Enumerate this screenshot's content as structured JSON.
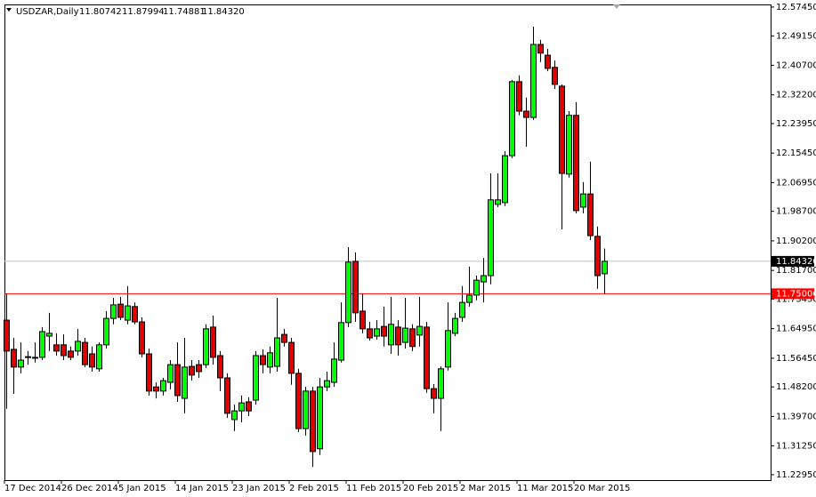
{
  "chart_data": {
    "type": "candlestick",
    "title": "USDZAR,Daily",
    "header_values": [
      "11.80742",
      "11.87994",
      "11.74881",
      "11.84320"
    ],
    "categories": [
      "17 Dec 2014",
      null,
      null,
      null,
      null,
      null,
      null,
      null,
      "26 Dec 2014",
      null,
      null,
      null,
      null,
      null,
      null,
      null,
      "5 Jan 2015",
      null,
      null,
      null,
      null,
      null,
      null,
      null,
      "14 Jan 2015",
      null,
      null,
      null,
      null,
      null,
      null,
      null,
      "23 Jan 2015",
      null,
      null,
      null,
      null,
      null,
      null,
      null,
      "2 Feb 2015",
      null,
      null,
      null,
      null,
      null,
      null,
      null,
      "11 Feb 2015",
      null,
      null,
      null,
      null,
      null,
      null,
      null,
      "20 Feb 2015",
      null,
      null,
      null,
      null,
      null,
      null,
      null,
      "2 Mar 2015",
      null,
      null,
      null,
      null,
      null,
      null,
      null,
      "11 Mar 2015",
      null,
      null,
      null,
      null,
      null,
      null,
      null,
      "20 Mar 2015",
      null,
      null,
      null,
      null
    ],
    "open": [
      11.674,
      11.59,
      11.539,
      11.567,
      11.566,
      11.567,
      11.628,
      11.603,
      11.603,
      11.585,
      11.585,
      11.61,
      11.577,
      11.534,
      11.603,
      11.679,
      11.72,
      11.674,
      11.713,
      11.669,
      11.577,
      11.482,
      11.47,
      11.495,
      11.546,
      11.449,
      11.541,
      11.546,
      11.546,
      11.654,
      11.572,
      11.508,
      11.388,
      11.413,
      11.439,
      11.444,
      11.572,
      11.539,
      11.541,
      11.633,
      11.61,
      11.521,
      11.362,
      11.47,
      11.304,
      11.482,
      11.495,
      11.559,
      11.667,
      11.843,
      11.7,
      11.649,
      11.628,
      11.656,
      11.603,
      11.654,
      11.61,
      11.649,
      11.631,
      11.654,
      11.477,
      11.449,
      11.539,
      11.636,
      11.682,
      11.725,
      11.746,
      11.784,
      11.802,
      12.007,
      12.012,
      12.147,
      12.36,
      12.275,
      12.257,
      12.467,
      12.436,
      12.401,
      12.347,
      12.094,
      12.263,
      11.999,
      12.037,
      11.915,
      11.80742
    ],
    "high": [
      11.751,
      11.623,
      11.61,
      11.585,
      11.61,
      11.654,
      11.695,
      11.636,
      11.633,
      11.598,
      11.649,
      11.623,
      11.598,
      11.61,
      11.7,
      11.738,
      11.741,
      11.772,
      11.725,
      11.682,
      11.592,
      11.495,
      11.508,
      11.559,
      11.61,
      11.623,
      11.559,
      11.559,
      11.662,
      11.687,
      11.585,
      11.521,
      11.431,
      11.457,
      11.452,
      11.585,
      11.59,
      11.598,
      11.738,
      11.649,
      11.623,
      11.534,
      11.482,
      11.482,
      11.508,
      11.526,
      11.61,
      11.725,
      11.884,
      11.869,
      11.751,
      11.669,
      11.674,
      11.713,
      11.741,
      11.674,
      11.738,
      11.662,
      11.741,
      11.669,
      11.49,
      11.541,
      11.725,
      11.695,
      11.772,
      11.828,
      11.802,
      11.853,
      12.096,
      12.096,
      12.16,
      12.365,
      12.378,
      12.314,
      12.518,
      12.48,
      12.454,
      12.421,
      12.352,
      12.275,
      12.301,
      12.071,
      12.13,
      11.943,
      11.87994
    ],
    "low": [
      11.419,
      11.462,
      11.521,
      11.546,
      11.552,
      11.559,
      11.585,
      11.572,
      11.559,
      11.559,
      11.572,
      11.539,
      11.526,
      11.526,
      11.592,
      11.662,
      11.674,
      11.662,
      11.662,
      11.567,
      11.457,
      11.449,
      11.457,
      11.475,
      11.439,
      11.406,
      11.5,
      11.508,
      11.536,
      11.546,
      11.47,
      11.393,
      11.355,
      11.38,
      11.398,
      11.431,
      11.521,
      11.521,
      11.526,
      11.598,
      11.488,
      11.352,
      11.342,
      11.252,
      11.286,
      11.47,
      11.482,
      11.552,
      11.654,
      11.669,
      11.636,
      11.615,
      11.618,
      11.598,
      11.577,
      11.572,
      11.592,
      11.585,
      11.598,
      11.465,
      11.406,
      11.355,
      11.529,
      11.628,
      11.669,
      11.713,
      11.731,
      11.725,
      11.777,
      11.999,
      12.002,
      12.14,
      12.263,
      12.173,
      12.25,
      12.416,
      12.39,
      12.339,
      11.935,
      12.084,
      11.981,
      11.981,
      11.904,
      11.764,
      11.74881
    ],
    "close": [
      11.585,
      11.539,
      11.559,
      11.569,
      11.567,
      11.641,
      11.636,
      11.585,
      11.572,
      11.567,
      11.613,
      11.546,
      11.539,
      11.603,
      11.679,
      11.718,
      11.682,
      11.715,
      11.669,
      11.577,
      11.47,
      11.47,
      11.5,
      11.546,
      11.457,
      11.539,
      11.516,
      11.526,
      11.649,
      11.567,
      11.508,
      11.406,
      11.413,
      11.436,
      11.413,
      11.572,
      11.546,
      11.58,
      11.623,
      11.61,
      11.521,
      11.362,
      11.47,
      11.296,
      11.482,
      11.5,
      11.562,
      11.667,
      11.841,
      11.695,
      11.649,
      11.623,
      11.649,
      11.628,
      11.662,
      11.603,
      11.651,
      11.598,
      11.656,
      11.477,
      11.449,
      11.534,
      11.644,
      11.679,
      11.725,
      11.746,
      11.789,
      11.802,
      12.02,
      12.02,
      12.147,
      12.36,
      12.275,
      12.257,
      12.467,
      12.442,
      12.398,
      12.352,
      12.096,
      12.263,
      11.989,
      12.037,
      11.917,
      11.802,
      11.8432
    ],
    "up_color": "#00ff00",
    "down_color": "#e00000",
    "ylim": [
      11.2139,
      12.582
    ],
    "yticks": [
      {
        "value": 12.5745,
        "label": "12.57450"
      },
      {
        "value": 12.4915,
        "label": "12.49150"
      },
      {
        "value": 12.407,
        "label": "12.40700"
      },
      {
        "value": 12.322,
        "label": "12.32200"
      },
      {
        "value": 12.2395,
        "label": "12.23950"
      },
      {
        "value": 12.1545,
        "label": "12.15450"
      },
      {
        "value": 12.0695,
        "label": "12.06950"
      },
      {
        "value": 11.987,
        "label": "11.98700"
      },
      {
        "value": 11.902,
        "label": "11.90200"
      },
      {
        "value": 11.817,
        "label": "11.81700"
      },
      {
        "value": 11.7345,
        "label": "11.73450"
      },
      {
        "value": 11.6495,
        "label": "11.64950"
      },
      {
        "value": 11.5645,
        "label": "11.56450"
      },
      {
        "value": 11.482,
        "label": "11.48200"
      },
      {
        "value": 11.397,
        "label": "11.39700"
      },
      {
        "value": 11.3125,
        "label": "11.31250"
      },
      {
        "value": 11.2295,
        "label": "11.22950"
      }
    ],
    "price_line": {
      "value": 11.8432,
      "label": "11.84320",
      "color": "#000000"
    },
    "level_line": {
      "value": 11.75,
      "label": "11.75000",
      "color": "#ff0000"
    },
    "grid": false
  }
}
